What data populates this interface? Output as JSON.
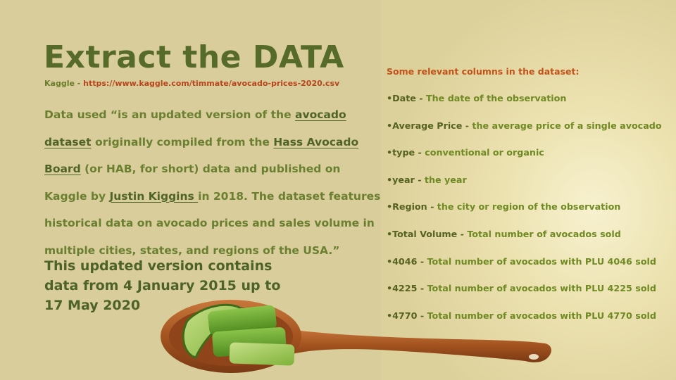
{
  "title": "Extract the DATA",
  "source": {
    "prefix": "Kaggle - ",
    "url": "https://www.kaggle.com/timmate/avocado-prices-2020.csv"
  },
  "description": {
    "p1": "Data used “is an updated version of the ",
    "link1": "avocado dataset",
    "p2": " originally compiled from the ",
    "link2": "Hass Avocado Board",
    "p3": " (or HAB, for short) data and published on Kaggle by ",
    "link3": "Justin Kiggins ",
    "p4": "in 2018. The dataset features historical data on avocado prices and sales volume in multiple cities, states, and regions of the USA.”"
  },
  "highlight": "This updated version contains data from 4 January 2015 up to 17 May 2020",
  "columns": {
    "heading": "Some relevant columns in the dataset:",
    "items": [
      {
        "key": "•Date - ",
        "desc": "The date of the observation"
      },
      {
        "key": "•Average Price - ",
        "desc": "the average price of a single avocado"
      },
      {
        "key": "•type - ",
        "desc": "conventional or organic"
      },
      {
        "key": "•year - ",
        "desc": "the year"
      },
      {
        "key": "•Region - ",
        "desc": "the city or region of the observation"
      },
      {
        "key": "•Total Volume - ",
        "desc": "Total number of avocados sold"
      },
      {
        "key": "•4046 - ",
        "desc": "Total number of avocados with PLU 4046 sold"
      },
      {
        "key": "•4225 - ",
        "desc": "Total number of avocados with PLU 4225 sold"
      },
      {
        "key": "•4770 - ",
        "desc": "Total number of avocados with PLU 4770 sold"
      }
    ]
  },
  "colors": {
    "title": "#566b2a",
    "body_text": "#6a7f30",
    "url": "#b8451c",
    "heading": "#c1531a",
    "background_left": "#d8cd9b"
  }
}
